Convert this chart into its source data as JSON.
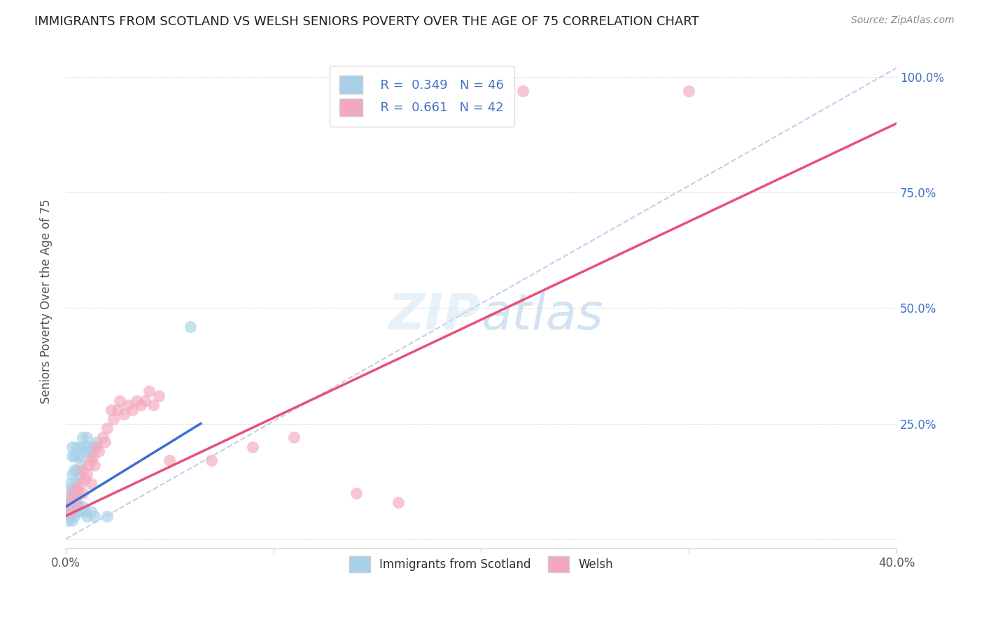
{
  "title": "IMMIGRANTS FROM SCOTLAND VS WELSH SENIORS POVERTY OVER THE AGE OF 75 CORRELATION CHART",
  "source": "Source: ZipAtlas.com",
  "ylabel": "Seniors Poverty Over the Age of 75",
  "xlabel_legend1": "Immigrants from Scotland",
  "xlabel_legend2": "Welsh",
  "r1": 0.349,
  "n1": 46,
  "r2": 0.661,
  "n2": 42,
  "xlim": [
    0.0,
    0.4
  ],
  "ylim": [
    -0.02,
    1.05
  ],
  "yticks": [
    0.0,
    0.25,
    0.5,
    0.75,
    1.0
  ],
  "xticks": [
    0.0,
    0.1,
    0.2,
    0.3,
    0.4
  ],
  "xtick_labels": [
    "0.0%",
    "",
    "",
    "",
    "40.0%"
  ],
  "ytick_labels_right": [
    "",
    "25.0%",
    "50.0%",
    "75.0%",
    "100.0%"
  ],
  "color_blue": "#a8d0e8",
  "color_pink": "#f4a8be",
  "color_blue_line": "#3b6fd4",
  "color_pink_line": "#e8507a",
  "color_dashed": "#aec6e8",
  "scatter_blue": [
    [
      0.001,
      0.07
    ],
    [
      0.002,
      0.08
    ],
    [
      0.002,
      0.1
    ],
    [
      0.002,
      0.12
    ],
    [
      0.003,
      0.09
    ],
    [
      0.003,
      0.11
    ],
    [
      0.003,
      0.14
    ],
    [
      0.003,
      0.18
    ],
    [
      0.003,
      0.2
    ],
    [
      0.004,
      0.07
    ],
    [
      0.004,
      0.1
    ],
    [
      0.004,
      0.15
    ],
    [
      0.004,
      0.18
    ],
    [
      0.005,
      0.08
    ],
    [
      0.005,
      0.12
    ],
    [
      0.005,
      0.15
    ],
    [
      0.005,
      0.2
    ],
    [
      0.006,
      0.14
    ],
    [
      0.006,
      0.18
    ],
    [
      0.007,
      0.16
    ],
    [
      0.007,
      0.2
    ],
    [
      0.008,
      0.18
    ],
    [
      0.008,
      0.22
    ],
    [
      0.009,
      0.2
    ],
    [
      0.01,
      0.19
    ],
    [
      0.01,
      0.22
    ],
    [
      0.011,
      0.2
    ],
    [
      0.012,
      0.19
    ],
    [
      0.013,
      0.2
    ],
    [
      0.015,
      0.21
    ],
    [
      0.001,
      0.04
    ],
    [
      0.002,
      0.05
    ],
    [
      0.002,
      0.06
    ],
    [
      0.003,
      0.04
    ],
    [
      0.003,
      0.06
    ],
    [
      0.004,
      0.05
    ],
    [
      0.005,
      0.06
    ],
    [
      0.006,
      0.07
    ],
    [
      0.007,
      0.06
    ],
    [
      0.008,
      0.07
    ],
    [
      0.009,
      0.06
    ],
    [
      0.01,
      0.05
    ],
    [
      0.012,
      0.06
    ],
    [
      0.014,
      0.05
    ],
    [
      0.06,
      0.46
    ],
    [
      0.02,
      0.05
    ]
  ],
  "scatter_pink": [
    [
      0.002,
      0.08
    ],
    [
      0.003,
      0.1
    ],
    [
      0.005,
      0.11
    ],
    [
      0.006,
      0.1
    ],
    [
      0.007,
      0.12
    ],
    [
      0.008,
      0.15
    ],
    [
      0.009,
      0.13
    ],
    [
      0.01,
      0.14
    ],
    [
      0.011,
      0.16
    ],
    [
      0.012,
      0.17
    ],
    [
      0.013,
      0.18
    ],
    [
      0.014,
      0.16
    ],
    [
      0.015,
      0.2
    ],
    [
      0.016,
      0.19
    ],
    [
      0.018,
      0.22
    ],
    [
      0.019,
      0.21
    ],
    [
      0.02,
      0.24
    ],
    [
      0.022,
      0.28
    ],
    [
      0.023,
      0.26
    ],
    [
      0.025,
      0.28
    ],
    [
      0.026,
      0.3
    ],
    [
      0.028,
      0.27
    ],
    [
      0.03,
      0.29
    ],
    [
      0.032,
      0.28
    ],
    [
      0.034,
      0.3
    ],
    [
      0.036,
      0.29
    ],
    [
      0.038,
      0.3
    ],
    [
      0.04,
      0.32
    ],
    [
      0.042,
      0.29
    ],
    [
      0.045,
      0.31
    ],
    [
      0.002,
      0.06
    ],
    [
      0.005,
      0.08
    ],
    [
      0.008,
      0.1
    ],
    [
      0.012,
      0.12
    ],
    [
      0.05,
      0.17
    ],
    [
      0.07,
      0.17
    ],
    [
      0.09,
      0.2
    ],
    [
      0.11,
      0.22
    ],
    [
      0.14,
      0.1
    ],
    [
      0.16,
      0.08
    ],
    [
      0.22,
      0.97
    ],
    [
      0.3,
      0.97
    ]
  ],
  "blue_line_x": [
    0.0,
    0.065
  ],
  "blue_line_y": [
    0.07,
    0.25
  ],
  "pink_line_x": [
    0.0,
    0.4
  ],
  "pink_line_y": [
    0.05,
    0.9
  ],
  "dashed_line_x": [
    0.0,
    0.4
  ],
  "dashed_line_y": [
    0.0,
    1.02
  ],
  "background_color": "#ffffff",
  "grid_color": "#e0e0e0",
  "grid_style": "--"
}
